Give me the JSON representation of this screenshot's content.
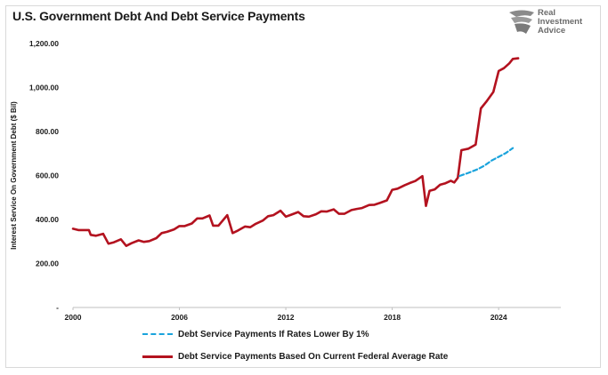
{
  "title": "U.S. Government Debt And Debt Service Payments",
  "logo": {
    "lines": [
      "Real",
      "Investment",
      "Advice"
    ],
    "icon": "eagle-head-icon"
  },
  "chart_data": {
    "type": "line",
    "ylabel": "Interest Service On Government Debt ($ Bil)",
    "xlabel": "",
    "ylim": [
      0,
      1200
    ],
    "xlim": [
      2000,
      2026
    ],
    "y_ticks": [
      {
        "value": 0,
        "label": "-"
      },
      {
        "value": 200,
        "label": "200.00"
      },
      {
        "value": 400,
        "label": "400.00"
      },
      {
        "value": 600,
        "label": "600.00"
      },
      {
        "value": 800,
        "label": "800.00"
      },
      {
        "value": 1000,
        "label": "1,000.00"
      },
      {
        "value": 1200,
        "label": "1,200.00"
      }
    ],
    "x_ticks": [
      {
        "value": 2000,
        "label": "2000"
      },
      {
        "value": 2006,
        "label": "2006"
      },
      {
        "value": 2012,
        "label": "2012"
      },
      {
        "value": 2018,
        "label": "2018"
      },
      {
        "value": 2024,
        "label": "2024"
      }
    ],
    "grid": false,
    "legend": "bottom",
    "series": [
      {
        "name": "Debt Service Payments If Rates Lower By 1%",
        "color": "#1aa3dc",
        "style": "dashed",
        "points": [
          [
            2021.8,
            598
          ],
          [
            2022.3,
            612
          ],
          [
            2022.8,
            628
          ],
          [
            2023.2,
            645
          ],
          [
            2023.6,
            668
          ],
          [
            2024.0,
            685
          ],
          [
            2024.4,
            702
          ],
          [
            2024.8,
            725
          ]
        ]
      },
      {
        "name": "Debt Service Payments Based On Current Federal Average Rate",
        "color": "#b3121f",
        "style": "solid",
        "points": [
          [
            2000.0,
            358
          ],
          [
            2000.3,
            352
          ],
          [
            2000.7,
            352
          ],
          [
            2000.9,
            352
          ],
          [
            2001.0,
            330
          ],
          [
            2001.3,
            326
          ],
          [
            2001.7,
            335
          ],
          [
            2002.0,
            290
          ],
          [
            2002.3,
            296
          ],
          [
            2002.7,
            310
          ],
          [
            2003.0,
            280
          ],
          [
            2003.3,
            292
          ],
          [
            2003.7,
            305
          ],
          [
            2004.0,
            298
          ],
          [
            2004.3,
            302
          ],
          [
            2004.7,
            315
          ],
          [
            2005.0,
            338
          ],
          [
            2005.3,
            344
          ],
          [
            2005.7,
            355
          ],
          [
            2006.0,
            370
          ],
          [
            2006.3,
            370
          ],
          [
            2006.7,
            382
          ],
          [
            2007.0,
            405
          ],
          [
            2007.3,
            405
          ],
          [
            2007.7,
            418
          ],
          [
            2007.9,
            372
          ],
          [
            2008.2,
            372
          ],
          [
            2008.7,
            420
          ],
          [
            2009.0,
            338
          ],
          [
            2009.3,
            350
          ],
          [
            2009.7,
            368
          ],
          [
            2010.0,
            365
          ],
          [
            2010.3,
            380
          ],
          [
            2010.7,
            395
          ],
          [
            2011.0,
            415
          ],
          [
            2011.3,
            420
          ],
          [
            2011.7,
            440
          ],
          [
            2012.0,
            413
          ],
          [
            2012.3,
            422
          ],
          [
            2012.7,
            434
          ],
          [
            2013.0,
            415
          ],
          [
            2013.3,
            413
          ],
          [
            2013.7,
            424
          ],
          [
            2014.0,
            437
          ],
          [
            2014.3,
            436
          ],
          [
            2014.7,
            446
          ],
          [
            2015.0,
            426
          ],
          [
            2015.3,
            426
          ],
          [
            2015.7,
            443
          ],
          [
            2016.0,
            448
          ],
          [
            2016.3,
            452
          ],
          [
            2016.7,
            466
          ],
          [
            2017.0,
            467
          ],
          [
            2017.3,
            475
          ],
          [
            2017.7,
            487
          ],
          [
            2018.0,
            535
          ],
          [
            2018.3,
            540
          ],
          [
            2018.7,
            556
          ],
          [
            2019.0,
            566
          ],
          [
            2019.3,
            575
          ],
          [
            2019.7,
            597
          ],
          [
            2019.9,
            462
          ],
          [
            2020.1,
            530
          ],
          [
            2020.4,
            537
          ],
          [
            2020.7,
            558
          ],
          [
            2021.0,
            565
          ],
          [
            2021.3,
            576
          ],
          [
            2021.5,
            568
          ],
          [
            2021.7,
            590
          ],
          [
            2021.9,
            715
          ],
          [
            2022.3,
            722
          ],
          [
            2022.7,
            740
          ],
          [
            2023.0,
            905
          ],
          [
            2023.3,
            935
          ],
          [
            2023.7,
            980
          ],
          [
            2024.0,
            1075
          ],
          [
            2024.3,
            1088
          ],
          [
            2024.6,
            1110
          ],
          [
            2024.8,
            1130
          ],
          [
            2025.1,
            1133
          ]
        ]
      }
    ]
  }
}
